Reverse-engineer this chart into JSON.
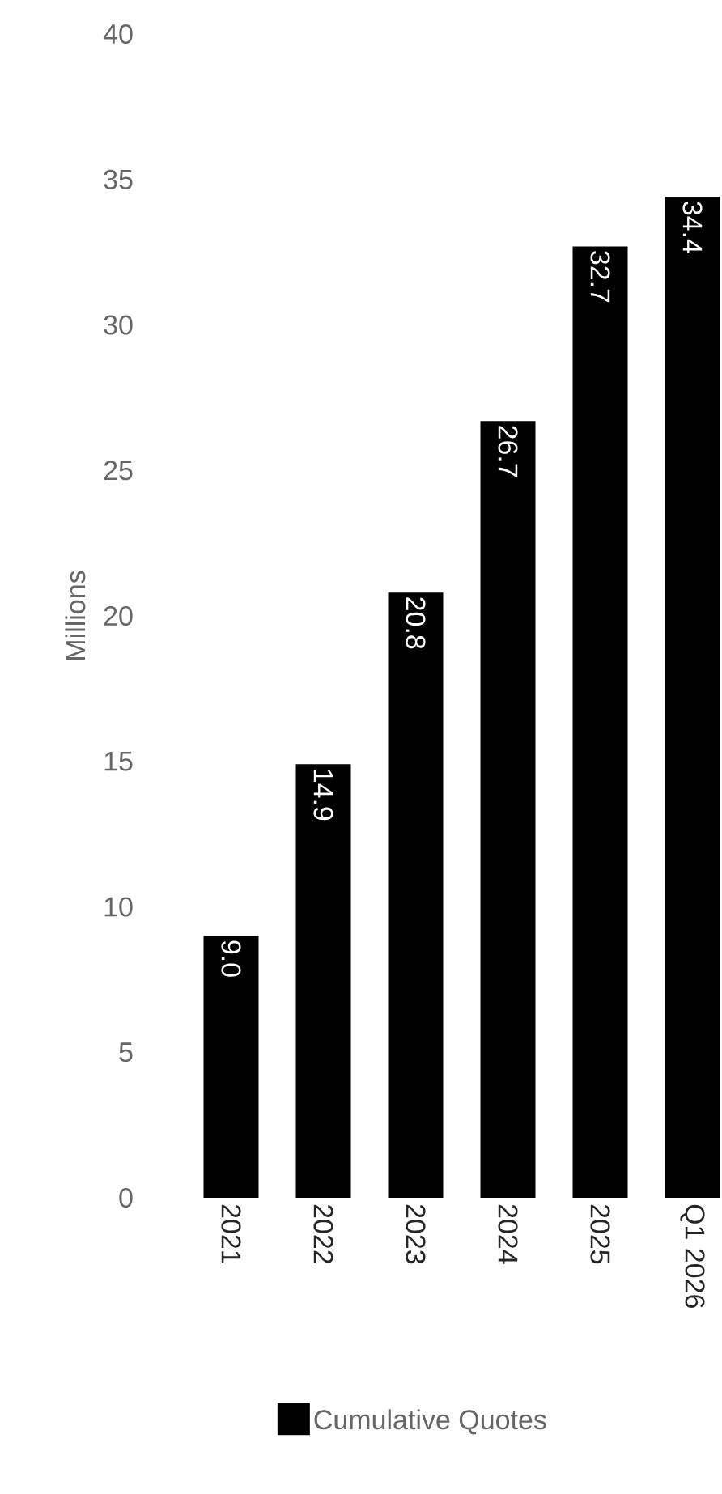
{
  "chart_data": {
    "type": "bar",
    "ylabel": "Millions",
    "categories": [
      "2021",
      "2022",
      "2023",
      "2024",
      "2025",
      "Q1 2026"
    ],
    "series": [
      {
        "name": "Cumulative Quotes",
        "color": "#000000",
        "values": [
          9.0,
          14.9,
          20.8,
          26.7,
          32.7,
          34.4
        ],
        "value_labels": [
          "9.0",
          "14.9",
          "20.8",
          "26.7",
          "32.7",
          "34.4"
        ]
      }
    ],
    "ylim": [
      0,
      40
    ],
    "yticks": [
      0,
      5,
      10,
      15,
      20,
      25,
      30,
      35,
      40
    ],
    "grid": false,
    "legend": "bottom"
  }
}
